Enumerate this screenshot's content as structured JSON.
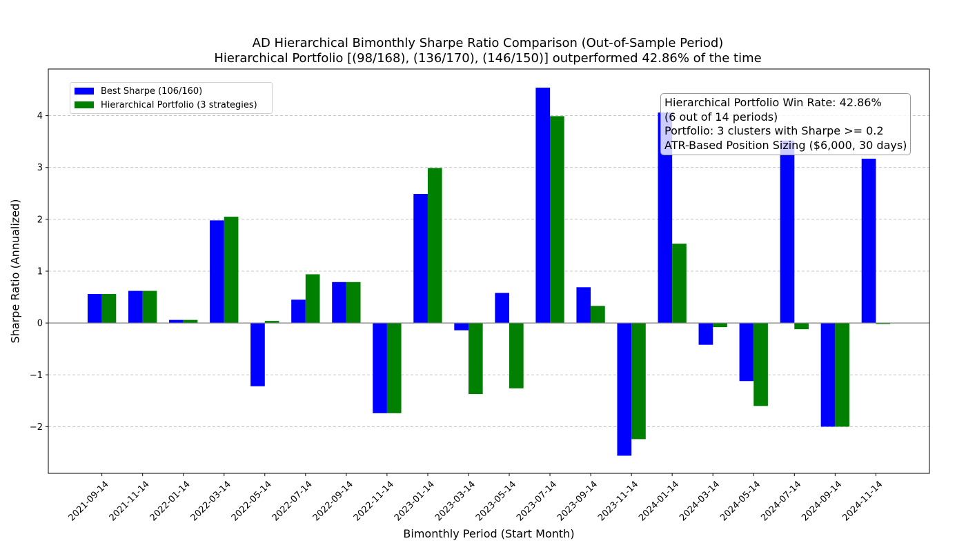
{
  "chart_data": {
    "type": "bar",
    "title": "AD Hierarchical Bimonthly Sharpe Ratio Comparison (Out-of-Sample Period)",
    "subtitle": "Hierarchical Portfolio [(98/168), (136/170), (146/150)] outperformed 42.86% of the time",
    "xlabel": "Bimonthly Period (Start Month)",
    "ylabel": "Sharpe Ratio (Annualized)",
    "ylim": [
      -2.9,
      4.9
    ],
    "yticks": [
      -2,
      -1,
      0,
      1,
      2,
      3,
      4
    ],
    "ytick_labels": [
      "−2",
      "−1",
      "0",
      "1",
      "2",
      "3",
      "4"
    ],
    "grid": "y-dashed",
    "legend_position": "upper-left",
    "categories": [
      "2021-09-14",
      "2021-11-14",
      "2022-01-14",
      "2022-03-14",
      "2022-05-14",
      "2022-07-14",
      "2022-09-14",
      "2022-11-14",
      "2023-01-14",
      "2023-03-14",
      "2023-05-14",
      "2023-07-14",
      "2023-09-14",
      "2023-11-14",
      "2024-01-14",
      "2024-03-14",
      "2024-05-14",
      "2024-07-14",
      "2024-09-14",
      "2024-11-14"
    ],
    "series": [
      {
        "name": "Best Sharpe (106/160)",
        "color": "#0000ff",
        "values": [
          0.56,
          0.62,
          0.06,
          1.98,
          -1.22,
          0.45,
          0.79,
          -1.74,
          2.49,
          -0.14,
          0.58,
          4.54,
          0.69,
          -2.56,
          4.06,
          -0.42,
          -1.12,
          3.52,
          -2.0,
          3.17
        ]
      },
      {
        "name": "Hierarchical Portfolio (3 strategies)",
        "color": "#008000",
        "values": [
          0.56,
          0.62,
          0.06,
          2.05,
          0.04,
          0.94,
          0.79,
          -1.74,
          2.99,
          -1.37,
          -1.26,
          3.99,
          0.33,
          -2.24,
          1.53,
          -0.08,
          -1.6,
          -0.12,
          -2.0,
          -0.02
        ]
      }
    ],
    "annotation": {
      "lines": [
        "Hierarchical Portfolio Win Rate: 42.86%",
        "(6 out of 14 periods)",
        "Portfolio: 3 clusters with Sharpe >= 0.2",
        "ATR-Based Position Sizing ($6,000, 30 days)"
      ],
      "position": "upper-right"
    }
  }
}
